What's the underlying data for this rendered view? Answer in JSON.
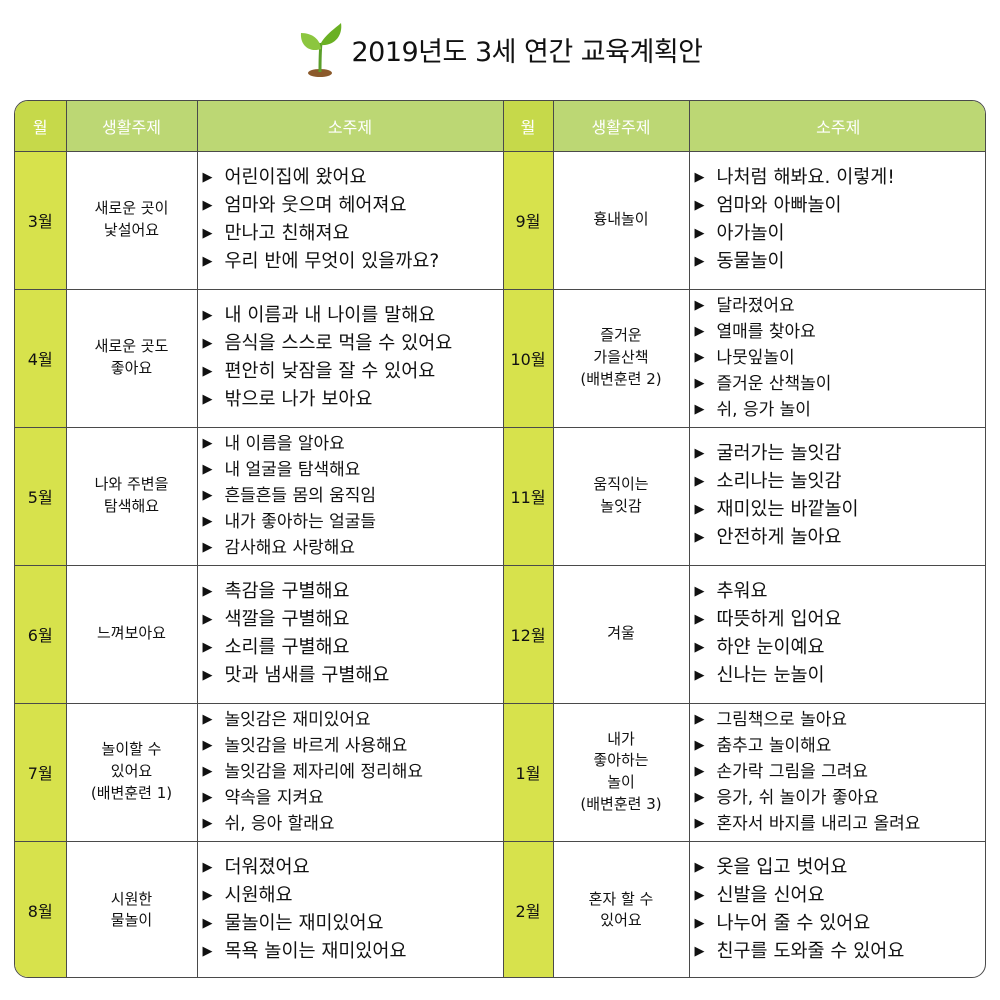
{
  "title": "2019년도 3세 연간 교육계획안",
  "headers": {
    "month": "월",
    "theme": "생활주제",
    "sub": "소주제"
  },
  "rows": [
    {
      "left": {
        "month": "3월",
        "theme": "새로운 곳이\n낯설어요",
        "items": [
          "어린이집에 왔어요",
          "엄마와 웃으며 헤어져요",
          "만나고 친해져요",
          "우리 반에 무엇이 있을까요?"
        ]
      },
      "right": {
        "month": "9월",
        "theme": "흉내놀이",
        "items": [
          "나처럼 해봐요. 이렇게!",
          "엄마와 아빠놀이",
          "아가놀이",
          "동물놀이"
        ]
      }
    },
    {
      "left": {
        "month": "4월",
        "theme": "새로운 곳도\n좋아요",
        "items": [
          "내 이름과 내 나이를 말해요",
          "음식을 스스로 먹을 수 있어요",
          "편안히 낮잠을 잘 수 있어요",
          "밖으로 나가 보아요"
        ]
      },
      "right": {
        "month": "10월",
        "theme": "즐거운\n가을산책\n(배변훈련 2)",
        "items": [
          "달라졌어요",
          "열매를 찾아요",
          "나뭇잎놀이",
          "즐거운 산책놀이",
          "쉬, 응가 놀이"
        ]
      }
    },
    {
      "left": {
        "month": "5월",
        "theme": "나와 주변을\n탐색해요",
        "items": [
          "내 이름을 알아요",
          "내 얼굴을 탐색해요",
          "흔들흔들 몸의 움직임",
          "내가 좋아하는 얼굴들",
          "감사해요 사랑해요"
        ]
      },
      "right": {
        "month": "11월",
        "theme": "움직이는\n놀잇감",
        "items": [
          "굴러가는 놀잇감",
          "소리나는 놀잇감",
          "재미있는 바깥놀이",
          "안전하게 놀아요"
        ]
      }
    },
    {
      "left": {
        "month": "6월",
        "theme": "느껴보아요",
        "items": [
          "촉감을 구별해요",
          "색깔을 구별해요",
          "소리를 구별해요",
          "맛과 냄새를 구별해요"
        ]
      },
      "right": {
        "month": "12월",
        "theme": "겨울",
        "items": [
          "추워요",
          "따뜻하게 입어요",
          "하얀 눈이예요",
          "신나는 눈놀이"
        ]
      }
    },
    {
      "left": {
        "month": "7월",
        "theme": "놀이할 수\n있어요\n(배변훈련 1)",
        "items": [
          "놀잇감은 재미있어요",
          "놀잇감을 바르게 사용해요",
          "놀잇감을 제자리에 정리해요",
          "약속을 지켜요",
          "쉬, 응아 할래요"
        ]
      },
      "right": {
        "month": "1월",
        "theme": "내가\n좋아하는\n놀이\n(배변훈련 3)",
        "items": [
          "그림책으로 놀아요",
          "춤추고 놀이해요",
          "손가락 그림을 그려요",
          "응가, 쉬 놀이가 좋아요",
          "혼자서 바지를 내리고 올려요"
        ]
      }
    },
    {
      "left": {
        "month": "8월",
        "theme": "시원한\n물놀이",
        "items": [
          "더워졌어요",
          "시원해요",
          "물놀이는 재미있어요",
          "목욕 놀이는 재미있어요"
        ]
      },
      "right": {
        "month": "2월",
        "theme": "혼자 할  수\n있어요",
        "items": [
          "옷을 입고 벗어요",
          "신발을 신어요",
          "나누어 줄 수 있어요",
          "친구를 도와줄 수 있어요"
        ]
      }
    }
  ],
  "colors": {
    "header_month": "#c6d94a",
    "header_theme": "#bcd774",
    "month_cell": "#d7e24c",
    "border": "#4a4a4a"
  },
  "icons": {
    "title": "sprout-icon",
    "bullet": "▶"
  }
}
